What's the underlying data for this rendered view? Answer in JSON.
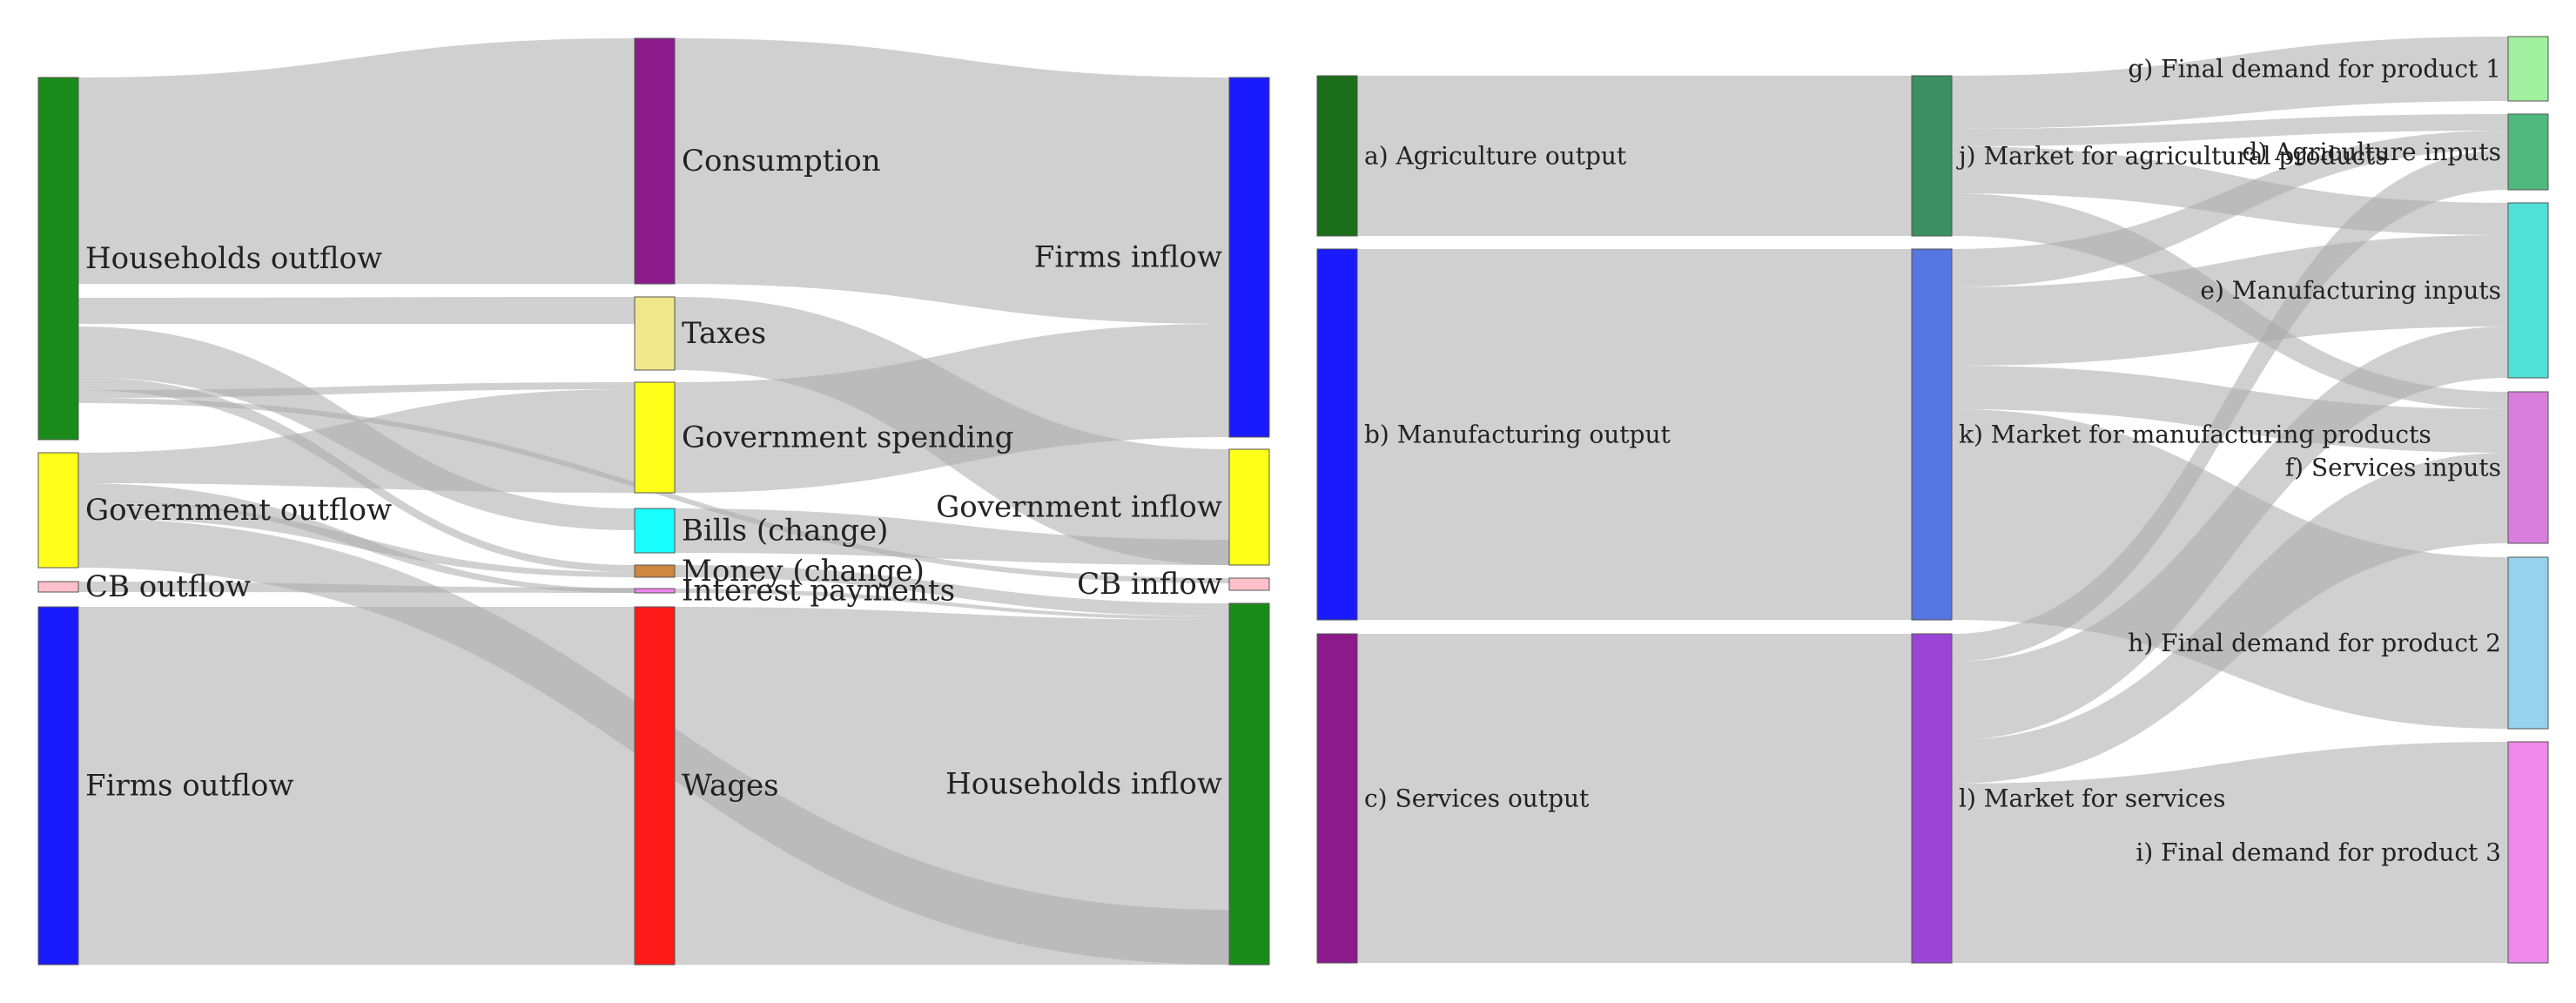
{
  "diagrams": [
    {
      "id": "left",
      "nodes": [
        {
          "label": "Households outflow",
          "color": "#1a8a1a",
          "col": 0
        },
        {
          "label": "Government outflow",
          "color": "#ffff1a",
          "col": 0
        },
        {
          "label": "CB outflow",
          "color": "#ffc0cb",
          "col": 0
        },
        {
          "label": "Firms outflow",
          "color": "#1a1aff",
          "col": 0
        },
        {
          "label": "Consumption",
          "color": "#8b1a8b",
          "col": 1
        },
        {
          "label": "Taxes",
          "color": "#f0e68c",
          "col": 1
        },
        {
          "label": "Government spending",
          "color": "#ffff1a",
          "col": 1
        },
        {
          "label": "Bills (change)",
          "color": "#1affff",
          "col": 1
        },
        {
          "label": "Money (change)",
          "color": "#cd853f",
          "col": 1
        },
        {
          "label": "Interest payments",
          "color": "#ee82ee",
          "col": 1
        },
        {
          "label": "Wages",
          "color": "#ff1a1a",
          "col": 1
        },
        {
          "label": "Firms inflow",
          "color": "#1a1aff",
          "col": 2
        },
        {
          "label": "Government inflow",
          "color": "#ffff1a",
          "col": 2
        },
        {
          "label": "CB inflow",
          "color": "#ffc0cb",
          "col": 2
        },
        {
          "label": "Households inflow",
          "color": "#1a8a1a",
          "col": 2
        }
      ]
    },
    {
      "id": "right",
      "nodes": [
        {
          "label": "a) Agriculture output",
          "color": "#1a6e1a",
          "col": 0
        },
        {
          "label": "b) Manufacturing output",
          "color": "#1a1aff",
          "col": 0
        },
        {
          "label": "c) Services output",
          "color": "#8b1a8b",
          "col": 0
        },
        {
          "label": "j) Market for agricultural products",
          "color": "#3c8f64",
          "col": 1
        },
        {
          "label": "k) Market for manufacturing products",
          "color": "#5575e0",
          "col": 1
        },
        {
          "label": "l) Market for services",
          "color": "#9b45d6",
          "col": 1
        },
        {
          "label": "g) Final demand for product 1",
          "color": "#a0f0a0",
          "col": 2
        },
        {
          "label": "d) Agriculture inputs",
          "color": "#4fb87c",
          "col": 2
        },
        {
          "label": "e) Manufacturing inputs",
          "color": "#4fe0d6",
          "col": 2
        },
        {
          "label": "f) Services inputs",
          "color": "#da7ede",
          "col": 2
        },
        {
          "label": "h) Final demand for product 2",
          "color": "#96d2ec",
          "col": 2
        },
        {
          "label": "i) Final demand for product 3",
          "color": "#ee88ea",
          "col": 2
        }
      ]
    }
  ],
  "link_color": "#aaaaaa"
}
